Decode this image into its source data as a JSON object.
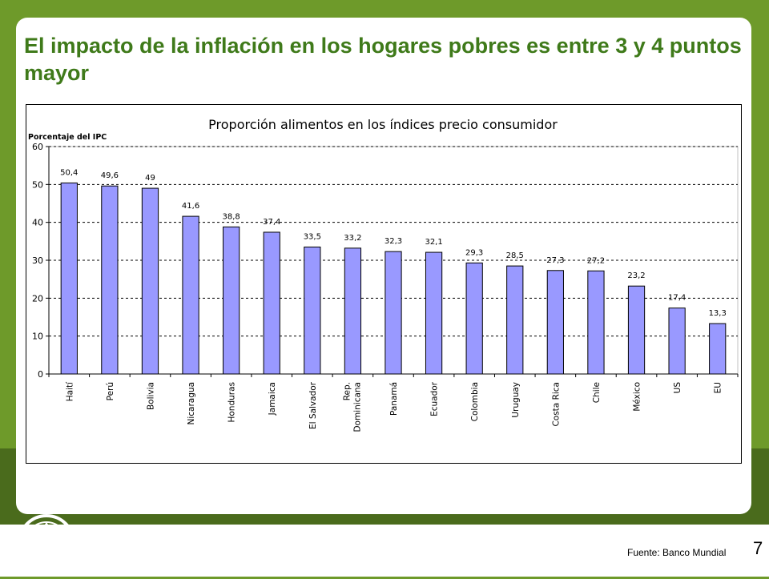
{
  "slide": {
    "title": "El impacto de la inflación en los hogares pobres es entre 3 y 4 puntos mayor",
    "source": "Fuente: Banco Mundial",
    "page_number": "7",
    "logo_text": {
      "center": "FAO",
      "left": "FIAT",
      "right": "PANIS"
    }
  },
  "colors": {
    "background": "#6e9a2a",
    "title": "#3f7a1a",
    "bar_fill": "#9999ff",
    "bar_stroke": "#000000"
  },
  "chart_data": {
    "type": "bar",
    "title": "Proporción alimentos en los índices precio consumidor",
    "ylabel": "Porcentaje del IPC",
    "ylim": [
      0,
      60
    ],
    "yticks": [
      0,
      10,
      20,
      30,
      40,
      50,
      60
    ],
    "grid": "dashed horizontal",
    "categories": [
      "Haití",
      "Perú",
      "Bolivia",
      "Nicaragua",
      "Honduras",
      "Jamaica",
      "El Salvador",
      "Rep. Dominicana",
      "Panamá",
      "Ecuador",
      "Colombia",
      "Uruguay",
      "Costa Rica",
      "Chile",
      "México",
      "US",
      "EU"
    ],
    "values": [
      50.4,
      49.6,
      49,
      41.6,
      38.8,
      37.4,
      33.5,
      33.2,
      32.3,
      32.1,
      29.3,
      28.5,
      27.3,
      27.2,
      23.2,
      17.4,
      13.3
    ],
    "value_labels": [
      "50,4",
      "49,6",
      "49",
      "41,6",
      "38,8",
      "37,4",
      "33,5",
      "33,2",
      "32,3",
      "32,1",
      "29,3",
      "28,5",
      "27,3",
      "27,2",
      "23,2",
      "17,4",
      "13,3"
    ]
  }
}
